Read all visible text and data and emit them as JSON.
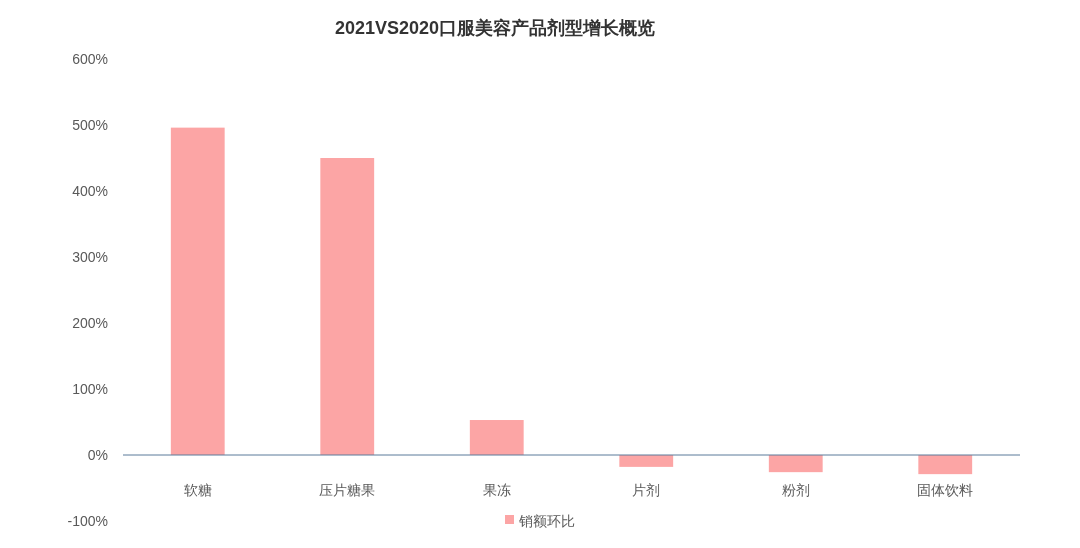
{
  "chart_data": {
    "type": "bar",
    "title": "2021VS2020口服美容产品剂型增长概览",
    "categories": [
      "软糖",
      "压片糖果",
      "果冻",
      "片剂",
      "粉剂",
      "固体饮料"
    ],
    "series": [
      {
        "name": "销额环比",
        "color": "#fca5a5",
        "values": [
          496,
          450,
          53,
          -18,
          -26,
          -29
        ]
      }
    ],
    "ylim": [
      -100,
      600
    ],
    "yticks": [
      {
        "value": -100,
        "label": "-100%"
      },
      {
        "value": 0,
        "label": "0%"
      },
      {
        "value": 100,
        "label": "100%"
      },
      {
        "value": 200,
        "label": "200%"
      },
      {
        "value": 300,
        "label": "300%"
      },
      {
        "value": 400,
        "label": "400%"
      },
      {
        "value": 500,
        "label": "500%"
      },
      {
        "value": 600,
        "label": "600%"
      }
    ],
    "grid": false,
    "legend": "bottom"
  }
}
